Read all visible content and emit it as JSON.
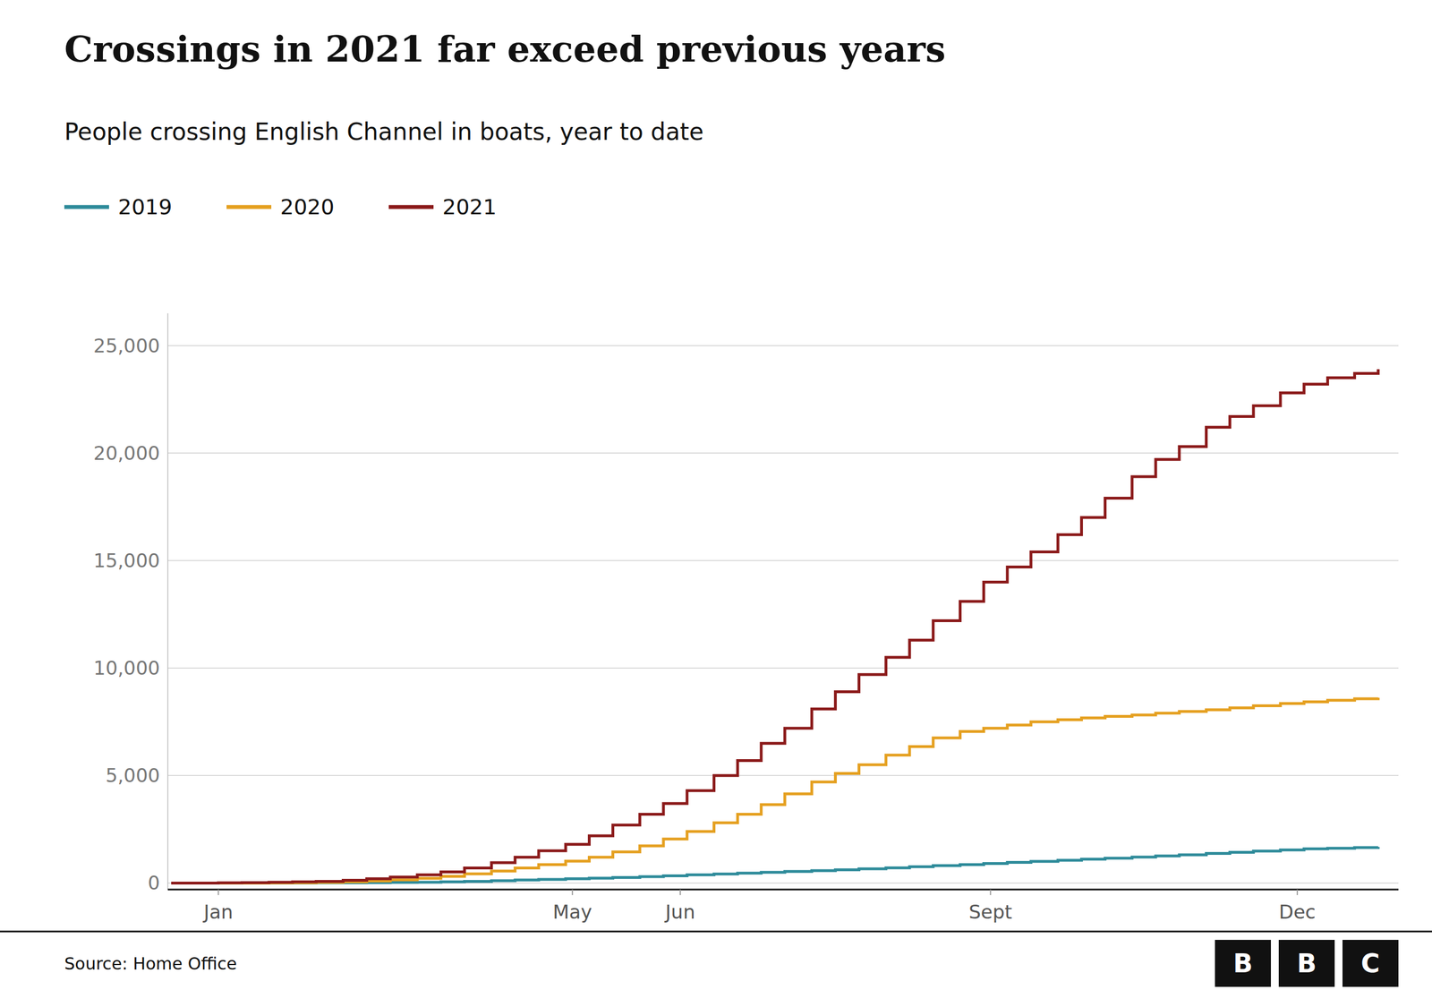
{
  "chart_data": {
    "type": "line",
    "title": "Crossings in 2021 far exceed previous years",
    "subtitle": "People crossing English Channel in boats, year to date",
    "source": "Source: Home Office",
    "logo": "BBC",
    "x": [
      1,
      8,
      15,
      22,
      30,
      37,
      44,
      52,
      59,
      66,
      74,
      81,
      88,
      96,
      103,
      110,
      118,
      125,
      132,
      140,
      147,
      154,
      162,
      169,
      176,
      183,
      191,
      198,
      205,
      213,
      220,
      227,
      235,
      242,
      249,
      256,
      264,
      271,
      278,
      286,
      293,
      300,
      308,
      315,
      322,
      330,
      337,
      344,
      352,
      359
    ],
    "series": [
      {
        "name": "2019",
        "color": "#2E8B9A",
        "values": [
          0,
          0,
          0,
          5,
          5,
          5,
          10,
          15,
          20,
          30,
          40,
          60,
          80,
          110,
          140,
          170,
          200,
          230,
          260,
          300,
          340,
          380,
          420,
          460,
          500,
          540,
          580,
          620,
          660,
          710,
          760,
          810,
          860,
          910,
          960,
          1010,
          1060,
          1110,
          1160,
          1210,
          1260,
          1310,
          1380,
          1430,
          1490,
          1540,
          1590,
          1620,
          1650,
          1680
        ]
      },
      {
        "name": "2020",
        "color": "#E5A020",
        "values": [
          0,
          0,
          0,
          0,
          5,
          10,
          30,
          60,
          100,
          150,
          220,
          310,
          430,
          560,
          700,
          860,
          1020,
          1200,
          1450,
          1730,
          2050,
          2400,
          2800,
          3200,
          3650,
          4150,
          4700,
          5100,
          5500,
          5950,
          6350,
          6750,
          7050,
          7200,
          7350,
          7500,
          7600,
          7680,
          7750,
          7820,
          7900,
          7980,
          8060,
          8150,
          8250,
          8350,
          8430,
          8500,
          8570,
          8620
        ]
      },
      {
        "name": "2021",
        "color": "#8B1A1A",
        "values": [
          0,
          0,
          10,
          20,
          40,
          60,
          80,
          130,
          200,
          280,
          380,
          520,
          700,
          950,
          1200,
          1500,
          1800,
          2200,
          2700,
          3200,
          3700,
          4300,
          5000,
          5700,
          6500,
          7200,
          8100,
          8900,
          9700,
          10500,
          11300,
          12200,
          13100,
          14000,
          14700,
          15400,
          16200,
          17000,
          17900,
          18900,
          19700,
          20300,
          21200,
          21700,
          22200,
          22800,
          23200,
          23500,
          23700,
          23900
        ]
      }
    ],
    "line_style": "steps",
    "xlim": [
      0,
      365
    ],
    "xticks": [
      {
        "value": 15,
        "label": "Jan"
      },
      {
        "value": 120,
        "label": "May"
      },
      {
        "value": 152,
        "label": "Jun"
      },
      {
        "value": 244,
        "label": "Sept"
      },
      {
        "value": 335,
        "label": "Dec"
      }
    ],
    "ylim": [
      -300,
      26500
    ],
    "yticks": [
      0,
      {
        "value": 5000,
        "label": "5,000"
      },
      {
        "value": 10000,
        "label": "10,000"
      },
      {
        "value": 15000,
        "label": "15,000"
      },
      {
        "value": 20000,
        "label": "20,000"
      },
      {
        "value": 25000,
        "label": "25,000"
      }
    ],
    "grid": true,
    "legend": "top-left"
  }
}
